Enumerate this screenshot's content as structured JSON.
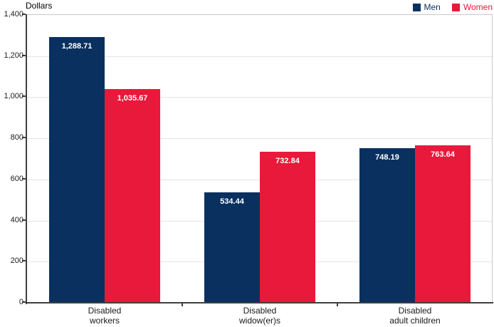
{
  "chart_data": {
    "type": "bar",
    "title": "",
    "ylabel": "Dollars",
    "xlabel": "",
    "categories": [
      "Disabled\nworkers",
      "Disabled\nwidow(er)s",
      "Disabled\nadult children"
    ],
    "series": [
      {
        "name": "Men",
        "color": "#0a305f",
        "values": [
          1288.71,
          534.44,
          748.19
        ],
        "value_labels": [
          "1,288.71",
          "534.44",
          "748.19"
        ]
      },
      {
        "name": "Women",
        "color": "#e8193a",
        "values": [
          1035.67,
          732.84,
          763.64
        ],
        "value_labels": [
          "1,035.67",
          "732.84",
          "763.64"
        ]
      }
    ],
    "ylim": [
      0,
      1400
    ],
    "ytick_step": 200,
    "ytick_labels": [
      "0",
      "200",
      "400",
      "600",
      "800",
      "1,000",
      "1,200",
      "1,400"
    ],
    "grid": true,
    "legend_position": "top-right"
  },
  "colors": {
    "men_navy": "#0a305f",
    "women_red": "#e8193a",
    "axis": "#3f3f3f",
    "gridline": "#e4e4e4",
    "plot_border": "#c8c8c8",
    "value_label_text": "#ffffff"
  }
}
